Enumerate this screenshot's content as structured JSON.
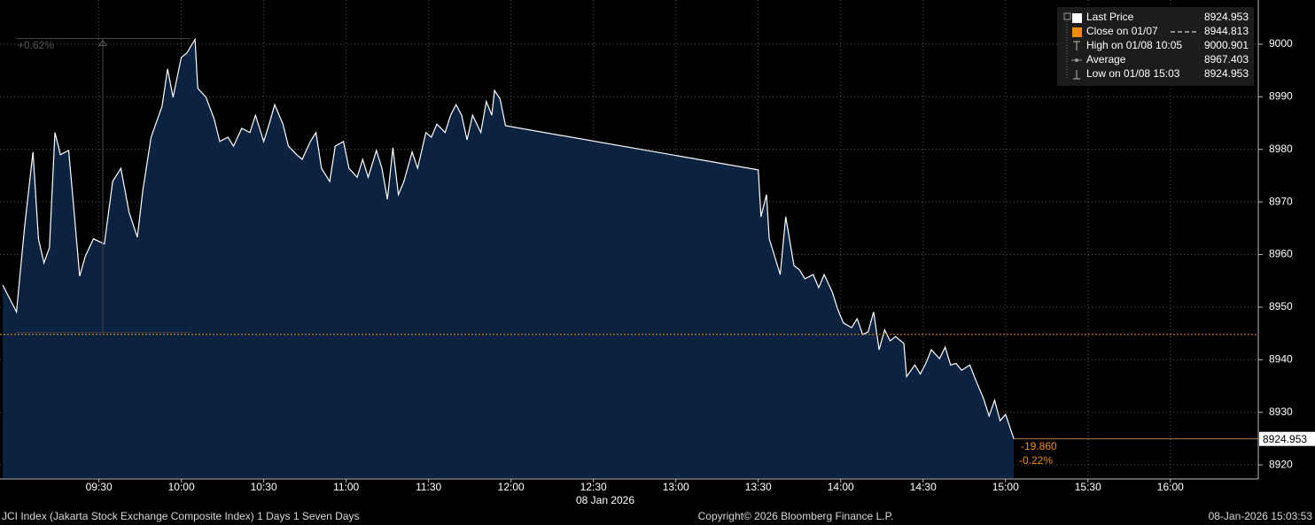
{
  "chart_data": {
    "type": "area",
    "x": [
      "08:55",
      "09:00",
      "09:03",
      "09:06",
      "09:08",
      "09:10",
      "09:12",
      "09:14",
      "09:16",
      "09:19",
      "09:21",
      "09:23",
      "09:25",
      "09:28",
      "09:32",
      "09:35",
      "09:38",
      "09:41",
      "09:44",
      "09:46",
      "09:49",
      "09:53",
      "09:55",
      "09:57",
      "10:00",
      "10:02",
      "10:05",
      "10:06",
      "10:09",
      "10:12",
      "10:14",
      "10:17",
      "10:19",
      "10:22",
      "10:25",
      "10:27",
      "10:30",
      "10:32",
      "10:34",
      "10:37",
      "10:39",
      "10:42",
      "10:44",
      "10:47",
      "10:49",
      "10:51",
      "10:54",
      "10:56",
      "10:59",
      "11:01",
      "11:04",
      "11:06",
      "11:08",
      "11:11",
      "11:13",
      "11:15",
      "11:17",
      "11:19",
      "11:21",
      "11:24",
      "11:26",
      "11:29",
      "11:31",
      "11:33",
      "11:36",
      "11:38",
      "11:40",
      "11:42",
      "11:44",
      "11:46",
      "11:49",
      "11:51",
      "11:53",
      "11:54",
      "11:56",
      "11:58",
      "13:30",
      "13:31",
      "13:33",
      "13:34",
      "13:37",
      "13:38",
      "13:40",
      "13:43",
      "13:45",
      "13:47",
      "13:50",
      "13:52",
      "13:54",
      "13:57",
      "13:59",
      "14:01",
      "14:04",
      "14:06",
      "14:08",
      "14:10",
      "14:12",
      "14:14",
      "14:16",
      "14:18",
      "14:20",
      "14:23",
      "14:24",
      "14:27",
      "14:29",
      "14:31",
      "14:33",
      "14:36",
      "14:38",
      "14:40",
      "14:42",
      "14:44",
      "14:47",
      "14:49",
      "14:52",
      "14:54",
      "14:56",
      "14:58",
      "15:00",
      "15:03"
    ],
    "series": [
      {
        "name": "Last Price",
        "color": "#ffffff",
        "fill": "#0b2240",
        "values": [
          8954.2,
          8949.1,
          8965.5,
          8979.5,
          8963.0,
          8958.4,
          8961.3,
          8983.2,
          8979.0,
          8979.8,
          8968.0,
          8955.9,
          8959.6,
          8963.0,
          8962.0,
          8973.9,
          8976.4,
          8968.0,
          8963.3,
          8972.2,
          8982.3,
          8988.2,
          8995.3,
          8989.9,
          8997.5,
          8998.3,
          9000.901,
          8991.6,
          8989.9,
          8985.7,
          8981.5,
          8982.3,
          8980.6,
          8984.0,
          8983.2,
          8986.5,
          8981.5,
          8984.8,
          8988.5,
          8984.8,
          8980.6,
          8979.0,
          8978.1,
          8981.5,
          8983.2,
          8976.4,
          8973.9,
          8980.6,
          8981.5,
          8976.4,
          8974.7,
          8978.1,
          8974.7,
          8979.8,
          8976.4,
          8970.5,
          8980.3,
          8971.4,
          8973.9,
          8979.5,
          8976.4,
          8983.2,
          8982.3,
          8984.8,
          8983.2,
          8986.5,
          8988.5,
          8986.5,
          8981.8,
          8986.5,
          8983.2,
          8989.1,
          8986.5,
          8991.2,
          8989.6,
          8984.5,
          8976.1,
          8967.2,
          8971.4,
          8963.0,
          8957.9,
          8956.2,
          8967.2,
          8957.9,
          8957.1,
          8955.4,
          8956.2,
          8953.7,
          8956.2,
          8952.8,
          8949.5,
          8947.0,
          8946.1,
          8947.8,
          8944.8,
          8945.3,
          8949.1,
          8941.9,
          8945.7,
          8943.6,
          8944.4,
          8943.1,
          8936.8,
          8939.0,
          8937.3,
          8939.3,
          8941.9,
          8940.2,
          8942.4,
          8939.0,
          8939.3,
          8938.0,
          8939.0,
          8936.3,
          8932.6,
          8929.3,
          8932.3,
          8928.4,
          8929.6,
          8924.953
        ]
      }
    ],
    "legend_items": [
      {
        "name": "Last Price",
        "value": 8924.953,
        "color": "#ffffff"
      },
      {
        "name": "Close on 01/07",
        "value": 8944.813,
        "color": "#f28c00"
      },
      {
        "name": "High on 01/08 10:05",
        "value": 9000.901
      },
      {
        "name": "Average",
        "value": 8967.403
      },
      {
        "name": "Low on 01/08 15:03",
        "value": 8924.953
      }
    ],
    "annotations": [
      "-19.860",
      "-0.22%",
      "+0.62%"
    ],
    "xlim": [
      "08:54",
      "16:32"
    ],
    "xticks": [
      "09:30",
      "10:00",
      "10:30",
      "11:00",
      "11:30",
      "12:00",
      "12:30",
      "13:00",
      "13:30",
      "14:00",
      "14:30",
      "15:00",
      "15:30",
      "16:00"
    ],
    "x_sublabel": "08 Jan 2026",
    "ylim": [
      8917.5,
      9008.4
    ],
    "yticks": [
      8920,
      8930,
      8940,
      8950,
      8960,
      8970,
      8980,
      8990,
      9000
    ],
    "grid": true,
    "footer": {
      "left": "JCI Index (Jakarta Stock Exchange Composite Index) 1 Days 1 Seven Days",
      "center": "Copyright© 2026 Bloomberg Finance L.P.",
      "right": "08-Jan-2026 15:03:53"
    }
  }
}
